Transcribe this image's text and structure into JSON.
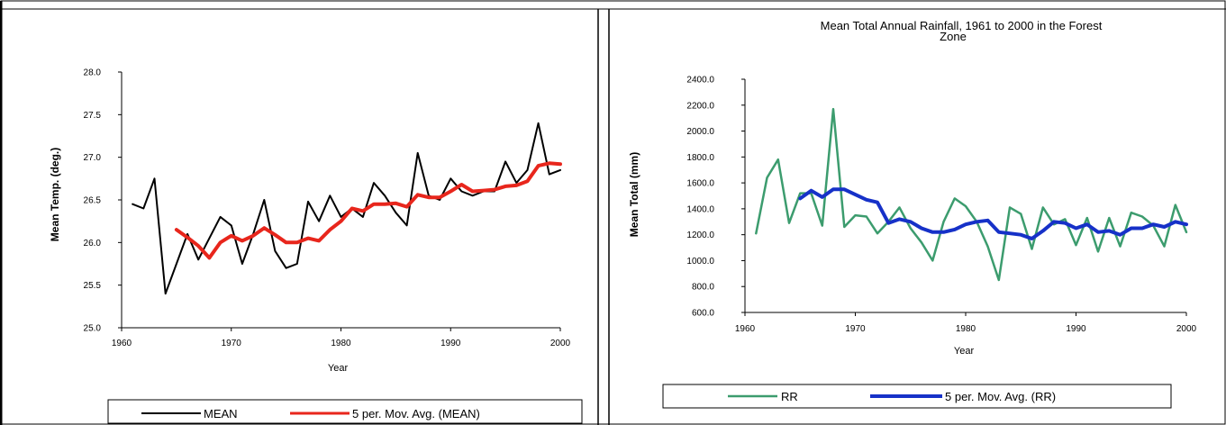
{
  "chart_data": [
    {
      "type": "line",
      "title": "",
      "xlabel": "Year",
      "ylabel": "Mean Temp. (deg.)",
      "xlim": [
        1960,
        2000
      ],
      "ylim": [
        25.0,
        28.0
      ],
      "x_ticks": [
        "1960",
        "1970",
        "1980",
        "1990",
        "2000"
      ],
      "y_ticks": [
        "25.0",
        "25.5",
        "26.0",
        "26.5",
        "27.0",
        "27.5",
        "28.0"
      ],
      "grid": false,
      "legend_position": "bottom",
      "series": [
        {
          "name": "MEAN",
          "color": "#000000",
          "x": [
            1961,
            1962,
            1963,
            1964,
            1965,
            1966,
            1967,
            1968,
            1969,
            1970,
            1971,
            1972,
            1973,
            1974,
            1975,
            1976,
            1977,
            1978,
            1979,
            1980,
            1981,
            1982,
            1983,
            1984,
            1985,
            1986,
            1987,
            1988,
            1989,
            1990,
            1991,
            1992,
            1993,
            1994,
            1995,
            1996,
            1997,
            1998,
            1999,
            2000
          ],
          "y": [
            26.45,
            26.4,
            26.75,
            25.4,
            25.75,
            26.1,
            25.8,
            26.05,
            26.3,
            26.2,
            25.75,
            26.1,
            26.5,
            25.9,
            25.7,
            25.75,
            26.48,
            26.25,
            26.55,
            26.3,
            26.4,
            26.3,
            26.7,
            26.55,
            26.35,
            26.2,
            27.05,
            26.55,
            26.5,
            26.75,
            26.6,
            26.55,
            26.6,
            26.6,
            26.95,
            26.7,
            26.85,
            27.4,
            26.8,
            26.85
          ]
        },
        {
          "name": "5 per. Mov. Avg. (MEAN)",
          "color": "#e8261c",
          "x": [
            1965,
            1966,
            1967,
            1968,
            1969,
            1970,
            1971,
            1972,
            1973,
            1974,
            1975,
            1976,
            1977,
            1978,
            1979,
            1980,
            1981,
            1982,
            1983,
            1984,
            1985,
            1986,
            1987,
            1988,
            1989,
            1990,
            1991,
            1992,
            1993,
            1994,
            1995,
            1996,
            1997,
            1998,
            1999,
            2000
          ],
          "y": [
            26.15,
            26.06,
            25.96,
            25.82,
            26.0,
            26.08,
            26.02,
            26.08,
            26.17,
            26.09,
            26.0,
            26.0,
            26.05,
            26.02,
            26.15,
            26.25,
            26.4,
            26.37,
            26.45,
            26.45,
            26.46,
            26.42,
            26.56,
            26.53,
            26.53,
            26.6,
            26.68,
            26.6,
            26.61,
            26.62,
            26.66,
            26.67,
            26.72,
            26.9,
            26.93,
            26.92
          ]
        }
      ]
    },
    {
      "type": "line",
      "title": "Mean Total Annual Rainfall, 1961 to 2000 in the Forest Zone",
      "title_lines": [
        "Mean Total Annual Rainfall, 1961 to 2000 in the Forest",
        "Zone"
      ],
      "xlabel": "Year",
      "ylabel": "Mean Total (mm)",
      "xlim": [
        1960,
        2000
      ],
      "ylim": [
        600.0,
        2400.0
      ],
      "x_ticks": [
        "1960",
        "1970",
        "1980",
        "1990",
        "2000"
      ],
      "y_ticks": [
        "600.0",
        "800.0",
        "1000.0",
        "1200.0",
        "1400.0",
        "1600.0",
        "1800.0",
        "2000.0",
        "2200.0",
        "2400.0"
      ],
      "grid": false,
      "legend_position": "bottom",
      "series": [
        {
          "name": "RR",
          "color": "#3c9c6e",
          "x": [
            1961,
            1962,
            1963,
            1964,
            1965,
            1966,
            1967,
            1968,
            1969,
            1970,
            1971,
            1972,
            1973,
            1974,
            1975,
            1976,
            1977,
            1978,
            1979,
            1980,
            1981,
            1982,
            1983,
            1984,
            1985,
            1986,
            1987,
            1988,
            1989,
            1990,
            1991,
            1992,
            1993,
            1994,
            1995,
            1996,
            1997,
            1998,
            1999,
            2000
          ],
          "y": [
            1210,
            1640,
            1780,
            1290,
            1520,
            1520,
            1270,
            2170,
            1260,
            1350,
            1340,
            1210,
            1300,
            1410,
            1250,
            1140,
            1000,
            1300,
            1480,
            1420,
            1300,
            1110,
            850,
            1410,
            1360,
            1090,
            1410,
            1280,
            1320,
            1120,
            1330,
            1070,
            1330,
            1110,
            1370,
            1340,
            1270,
            1110,
            1430,
            1220
          ]
        },
        {
          "name": "5 per. Mov. Avg. (RR)",
          "color": "#1631c8",
          "x": [
            1965,
            1966,
            1967,
            1968,
            1969,
            1970,
            1971,
            1972,
            1973,
            1974,
            1975,
            1976,
            1977,
            1978,
            1979,
            1980,
            1981,
            1982,
            1983,
            1984,
            1985,
            1986,
            1987,
            1988,
            1989,
            1990,
            1991,
            1992,
            1993,
            1994,
            1995,
            1996,
            1997,
            1998,
            1999,
            2000
          ],
          "y": [
            1480,
            1540,
            1490,
            1550,
            1550,
            1510,
            1470,
            1450,
            1290,
            1320,
            1300,
            1250,
            1220,
            1220,
            1240,
            1280,
            1300,
            1310,
            1220,
            1210,
            1200,
            1170,
            1230,
            1300,
            1290,
            1250,
            1280,
            1220,
            1230,
            1200,
            1250,
            1250,
            1280,
            1260,
            1300,
            1280
          ]
        }
      ]
    }
  ]
}
